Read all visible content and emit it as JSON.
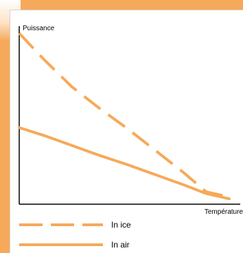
{
  "chart_data": {
    "type": "line",
    "ylabel": "Puissance",
    "xlabel": "Température",
    "grid": false,
    "legend_position": "bottom-left",
    "x_range": [
      0,
      10
    ],
    "y_range": [
      0,
      10
    ],
    "series": [
      {
        "name": "In ice",
        "style": "dashed",
        "color": "#f6a95a",
        "x": [
          0,
          1.2,
          2.5,
          3.8,
          5.2,
          6.5,
          7.8,
          8.9,
          10
        ],
        "y": [
          9.6,
          8.1,
          6.6,
          5.4,
          4.2,
          3.0,
          1.8,
          0.7,
          0.4
        ]
      },
      {
        "name": "In air",
        "style": "solid",
        "color": "#f6a95a",
        "x": [
          0,
          1.2,
          2.5,
          3.8,
          5.2,
          6.5,
          7.8,
          8.9,
          10
        ],
        "y": [
          4.3,
          3.85,
          3.3,
          2.75,
          2.2,
          1.65,
          1.1,
          0.6,
          0.3
        ]
      }
    ],
    "legend": [
      {
        "label": "In ice",
        "style": "dashed"
      },
      {
        "label": "In air",
        "style": "solid"
      }
    ]
  }
}
